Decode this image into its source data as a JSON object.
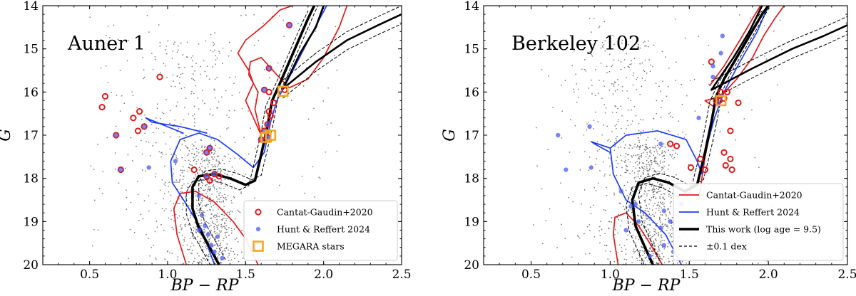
{
  "chart_data": [
    {
      "type": "scatter",
      "title": "Auner 1",
      "xlabel": "BP − RP",
      "ylabel": "G",
      "xlim": [
        0.2,
        2.5
      ],
      "ylim": [
        20,
        14
      ],
      "xticks": [
        0.5,
        1.0,
        1.5,
        2.0,
        2.5
      ],
      "xtick_labels": [
        "0.5",
        "1.0",
        "1.5",
        "2.0",
        "2.5"
      ],
      "yticks": [
        14,
        15,
        16,
        17,
        18,
        19,
        20
      ],
      "ytick_labels": [
        "14",
        "15",
        "16",
        "17",
        "18",
        "19",
        "20"
      ],
      "legend_position": "lower-right",
      "legend": [
        {
          "label": "Cantat-Gaudin+2020",
          "marker": "open-circle",
          "color": "#e31a1c"
        },
        {
          "label": "Hunt & Reffert 2024",
          "marker": "filled-circle",
          "color": "#4b5cf0"
        },
        {
          "label": "MEGARA stars",
          "marker": "open-square",
          "color": "#f5a623"
        }
      ],
      "series": [
        {
          "name": "Cantat-Gaudin+2020",
          "color": "#e31a1c",
          "points": [
            [
              0.6,
              16.1
            ],
            [
              0.58,
              16.35
            ],
            [
              0.95,
              15.65
            ],
            [
              0.78,
              16.6
            ],
            [
              0.82,
              16.45
            ],
            [
              0.81,
              16.9
            ],
            [
              0.85,
              16.8
            ],
            [
              0.67,
              17.0
            ],
            [
              0.7,
              17.8
            ],
            [
              1.25,
              17.4
            ],
            [
              1.27,
              17.3
            ],
            [
              1.3,
              17.9
            ],
            [
              1.25,
              17.95
            ],
            [
              1.17,
              17.8
            ],
            [
              1.33,
              17.95
            ],
            [
              1.27,
              18.05
            ],
            [
              1.65,
              15.45
            ],
            [
              1.62,
              15.95
            ],
            [
              1.65,
              16.0
            ],
            [
              1.68,
              16.25
            ],
            [
              1.65,
              16.45
            ],
            [
              1.66,
              16.55
            ],
            [
              1.64,
              16.75
            ],
            [
              1.62,
              16.9
            ],
            [
              1.6,
              17.1
            ],
            [
              1.64,
              17.05
            ],
            [
              1.78,
              14.45
            ],
            [
              1.75,
              15.95
            ]
          ]
        },
        {
          "name": "Hunt & Reffert 2024",
          "color": "#4b5cf0",
          "points": [
            [
              0.67,
              17.0
            ],
            [
              0.7,
              17.8
            ],
            [
              0.85,
              16.8
            ],
            [
              0.88,
              17.75
            ],
            [
              1.05,
              17.6
            ],
            [
              1.27,
              17.3
            ],
            [
              1.25,
              17.4
            ],
            [
              1.25,
              17.95
            ],
            [
              1.3,
              17.9
            ],
            [
              1.2,
              18.4
            ],
            [
              1.22,
              18.85
            ],
            [
              1.24,
              19.1
            ],
            [
              1.26,
              19.3
            ],
            [
              1.28,
              19.55
            ],
            [
              1.3,
              19.7
            ],
            [
              1.35,
              19.85
            ],
            [
              1.2,
              19.2
            ],
            [
              1.32,
              19.35
            ],
            [
              1.65,
              15.45
            ],
            [
              1.62,
              15.95
            ],
            [
              1.64,
              16.75
            ],
            [
              1.62,
              16.9
            ],
            [
              1.6,
              17.1
            ],
            [
              1.64,
              17.05
            ],
            [
              1.78,
              14.45
            ]
          ]
        },
        {
          "name": "MEGARA stars",
          "color": "#f5a623",
          "points": [
            [
              1.74,
              15.98
            ],
            [
              1.63,
              17.05
            ],
            [
              1.66,
              17.0
            ]
          ]
        }
      ],
      "isochrones": [
        {
          "name": "Cantat-Gaudin+2020",
          "color": "#e31a1c",
          "style": "solid"
        },
        {
          "name": "Hunt & Reffert 2024",
          "color": "#1f3cff",
          "style": "solid"
        },
        {
          "name": "This work (log age = 9.5)",
          "color": "#000000",
          "style": "solid-thick"
        },
        {
          "name": "±0.1 dex",
          "color": "#000000",
          "style": "dashed"
        }
      ]
    },
    {
      "type": "scatter",
      "title": "Berkeley 102",
      "xlabel": "BP − RP",
      "ylabel": "G",
      "xlim": [
        0.2,
        2.5
      ],
      "ylim": [
        20,
        14
      ],
      "xticks": [
        0.5,
        1.0,
        1.5,
        2.0,
        2.5
      ],
      "xtick_labels": [
        "0.5",
        "1.0",
        "1.5",
        "2.0",
        "2.5"
      ],
      "yticks": [
        14,
        15,
        16,
        17,
        18,
        19,
        20
      ],
      "ytick_labels": [
        "14",
        "15",
        "16",
        "17",
        "18",
        "19",
        "20"
      ],
      "legend_position": "lower-right",
      "legend": [
        {
          "label": "Cantat-Gaudin+2020",
          "marker": "line",
          "color": "#e31a1c"
        },
        {
          "label": "Hunt & Reffert 2024",
          "marker": "line",
          "color": "#1f3cff"
        },
        {
          "label": "This work (log age = 9.5)",
          "marker": "thick-line",
          "color": "#000000"
        },
        {
          "label": "±0.1 dex",
          "marker": "dashed-line",
          "color": "#000000"
        }
      ],
      "series": [
        {
          "name": "Cantat-Gaudin+2020",
          "color": "#e31a1c",
          "points": [
            [
              1.38,
              17.2
            ],
            [
              1.42,
              17.25
            ],
            [
              1.51,
              17.75
            ],
            [
              1.57,
              17.55
            ],
            [
              1.6,
              17.8
            ],
            [
              1.72,
              17.4
            ],
            [
              1.76,
              17.55
            ],
            [
              1.77,
              17.8
            ],
            [
              1.73,
              17.7
            ],
            [
              1.69,
              16.2
            ],
            [
              1.72,
              16.15
            ],
            [
              1.74,
              16.0
            ],
            [
              1.76,
              16.9
            ],
            [
              1.81,
              16.25
            ],
            [
              1.7,
              16.0
            ],
            [
              1.67,
              16.2
            ],
            [
              1.64,
              15.3
            ]
          ]
        },
        {
          "name": "Hunt & Reffert 2024",
          "color": "#4b5cf0",
          "points": [
            [
              0.67,
              17.0
            ],
            [
              0.72,
              17.8
            ],
            [
              0.87,
              16.8
            ],
            [
              0.88,
              17.75
            ],
            [
              1.32,
              17.2
            ],
            [
              1.65,
              15.4
            ],
            [
              1.65,
              15.65
            ],
            [
              1.71,
              14.7
            ],
            [
              1.7,
              15.1
            ],
            [
              1.7,
              16.1
            ],
            [
              1.68,
              16.25
            ],
            [
              1.56,
              16.6
            ],
            [
              1.07,
              18.3
            ],
            [
              1.13,
              18.65
            ],
            [
              1.16,
              18.6
            ],
            [
              1.18,
              19.0
            ],
            [
              1.1,
              19.2
            ],
            [
              1.32,
              19.15
            ],
            [
              1.34,
              19.55
            ],
            [
              1.4,
              19.7
            ],
            [
              1.25,
              19.8
            ],
            [
              1.34,
              18.75
            ],
            [
              1.45,
              18.6
            ],
            [
              1.38,
              19.0
            ]
          ]
        },
        {
          "name": "MEGARA stars",
          "color": "#f5a623",
          "points": [
            [
              1.7,
              16.2
            ]
          ]
        }
      ],
      "isochrones": [
        {
          "name": "Cantat-Gaudin+2020",
          "color": "#e31a1c",
          "style": "solid"
        },
        {
          "name": "Hunt & Reffert 2024",
          "color": "#1f3cff",
          "style": "solid"
        },
        {
          "name": "This work (log age = 9.5)",
          "color": "#000000",
          "style": "solid-thick"
        },
        {
          "name": "±0.1 dex",
          "color": "#000000",
          "style": "dashed"
        }
      ]
    }
  ]
}
